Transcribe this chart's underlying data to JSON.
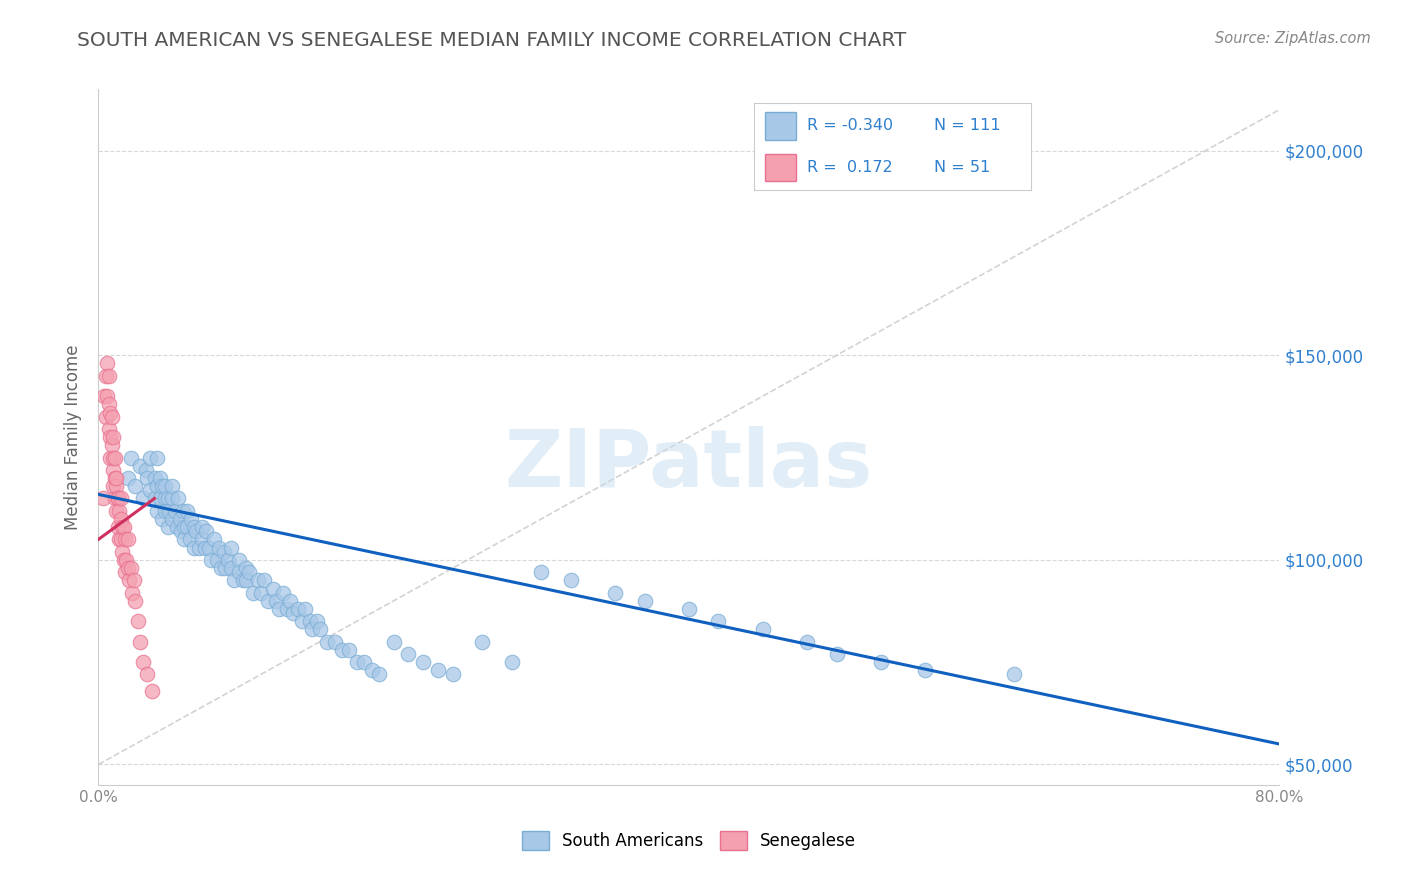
{
  "title": "SOUTH AMERICAN VS SENEGALESE MEDIAN FAMILY INCOME CORRELATION CHART",
  "source_text": "Source: ZipAtlas.com",
  "ylabel": "Median Family Income",
  "xlim": [
    0.0,
    0.8
  ],
  "ylim": [
    45000,
    215000
  ],
  "yticks": [
    50000,
    100000,
    150000,
    200000
  ],
  "ytick_labels": [
    "$50,000",
    "$100,000",
    "$150,000",
    "$200,000"
  ],
  "xticks": [
    0.0,
    0.8
  ],
  "xtick_labels": [
    "0.0%",
    "80.0%"
  ],
  "blue_R": "-0.340",
  "blue_N": "111",
  "pink_R": "0.172",
  "pink_N": "51",
  "blue_color": "#a8c8e8",
  "blue_edge_color": "#7aadd4",
  "pink_color": "#f4a0b0",
  "pink_edge_color": "#e87090",
  "blue_line_color": "#1060c0",
  "pink_line_color": "#d03060",
  "legend_blue_label": "South Americans",
  "legend_pink_label": "Senegalese",
  "watermark": "ZIPatlas",
  "background_color": "#ffffff",
  "title_color": "#555555",
  "ytick_color": "#3080d0",
  "xtick_color": "#888888",
  "axis_color": "#888888",
  "grid_color": "#d8d8d8",
  "ref_line_color": "#c8c8c8",
  "blue_scatter_x": [
    0.02,
    0.022,
    0.025,
    0.028,
    0.03,
    0.032,
    0.033,
    0.035,
    0.035,
    0.038,
    0.038,
    0.04,
    0.04,
    0.04,
    0.042,
    0.042,
    0.043,
    0.043,
    0.045,
    0.045,
    0.045,
    0.047,
    0.047,
    0.048,
    0.05,
    0.05,
    0.05,
    0.052,
    0.053,
    0.054,
    0.055,
    0.056,
    0.057,
    0.058,
    0.058,
    0.06,
    0.06,
    0.062,
    0.063,
    0.065,
    0.065,
    0.066,
    0.068,
    0.07,
    0.07,
    0.072,
    0.073,
    0.075,
    0.076,
    0.078,
    0.08,
    0.082,
    0.083,
    0.085,
    0.086,
    0.088,
    0.09,
    0.09,
    0.092,
    0.095,
    0.095,
    0.098,
    0.1,
    0.1,
    0.102,
    0.105,
    0.108,
    0.11,
    0.112,
    0.115,
    0.118,
    0.12,
    0.122,
    0.125,
    0.128,
    0.13,
    0.132,
    0.135,
    0.138,
    0.14,
    0.143,
    0.145,
    0.148,
    0.15,
    0.155,
    0.16,
    0.165,
    0.17,
    0.175,
    0.18,
    0.185,
    0.19,
    0.2,
    0.21,
    0.22,
    0.23,
    0.24,
    0.26,
    0.28,
    0.3,
    0.32,
    0.35,
    0.37,
    0.4,
    0.42,
    0.45,
    0.48,
    0.5,
    0.53,
    0.56,
    0.62
  ],
  "blue_scatter_y": [
    120000,
    125000,
    118000,
    123000,
    115000,
    122000,
    120000,
    125000,
    117000,
    115000,
    120000,
    125000,
    118000,
    112000,
    120000,
    115000,
    118000,
    110000,
    115000,
    112000,
    118000,
    115000,
    108000,
    112000,
    115000,
    110000,
    118000,
    112000,
    108000,
    115000,
    110000,
    107000,
    112000,
    108000,
    105000,
    112000,
    108000,
    105000,
    110000,
    108000,
    103000,
    107000,
    103000,
    108000,
    105000,
    103000,
    107000,
    103000,
    100000,
    105000,
    100000,
    103000,
    98000,
    102000,
    98000,
    100000,
    98000,
    103000,
    95000,
    100000,
    97000,
    95000,
    98000,
    95000,
    97000,
    92000,
    95000,
    92000,
    95000,
    90000,
    93000,
    90000,
    88000,
    92000,
    88000,
    90000,
    87000,
    88000,
    85000,
    88000,
    85000,
    83000,
    85000,
    83000,
    80000,
    80000,
    78000,
    78000,
    75000,
    75000,
    73000,
    72000,
    80000,
    77000,
    75000,
    73000,
    72000,
    80000,
    75000,
    97000,
    95000,
    92000,
    90000,
    88000,
    85000,
    83000,
    80000,
    77000,
    75000,
    73000,
    72000
  ],
  "pink_scatter_x": [
    0.003,
    0.004,
    0.005,
    0.005,
    0.006,
    0.006,
    0.007,
    0.007,
    0.007,
    0.008,
    0.008,
    0.008,
    0.009,
    0.009,
    0.01,
    0.01,
    0.01,
    0.01,
    0.011,
    0.011,
    0.011,
    0.012,
    0.012,
    0.012,
    0.013,
    0.013,
    0.013,
    0.014,
    0.014,
    0.015,
    0.015,
    0.015,
    0.016,
    0.016,
    0.017,
    0.017,
    0.018,
    0.018,
    0.019,
    0.02,
    0.02,
    0.021,
    0.022,
    0.023,
    0.024,
    0.025,
    0.027,
    0.028,
    0.03,
    0.033,
    0.036
  ],
  "pink_scatter_y": [
    115000,
    140000,
    145000,
    135000,
    140000,
    148000,
    138000,
    132000,
    145000,
    130000,
    136000,
    125000,
    135000,
    128000,
    130000,
    122000,
    118000,
    125000,
    120000,
    115000,
    125000,
    118000,
    112000,
    120000,
    115000,
    108000,
    115000,
    112000,
    105000,
    110000,
    105000,
    115000,
    108000,
    102000,
    108000,
    100000,
    105000,
    97000,
    100000,
    98000,
    105000,
    95000,
    98000,
    92000,
    95000,
    90000,
    85000,
    80000,
    75000,
    72000,
    68000
  ],
  "blue_trend_x": [
    0.0,
    0.8
  ],
  "blue_trend_y": [
    116000,
    55000
  ],
  "pink_trend_x": [
    0.0,
    0.038
  ],
  "pink_trend_y": [
    105000,
    115000
  ],
  "ref_line_x": [
    0.0,
    0.8
  ],
  "ref_line_y": [
    50000,
    210000
  ]
}
